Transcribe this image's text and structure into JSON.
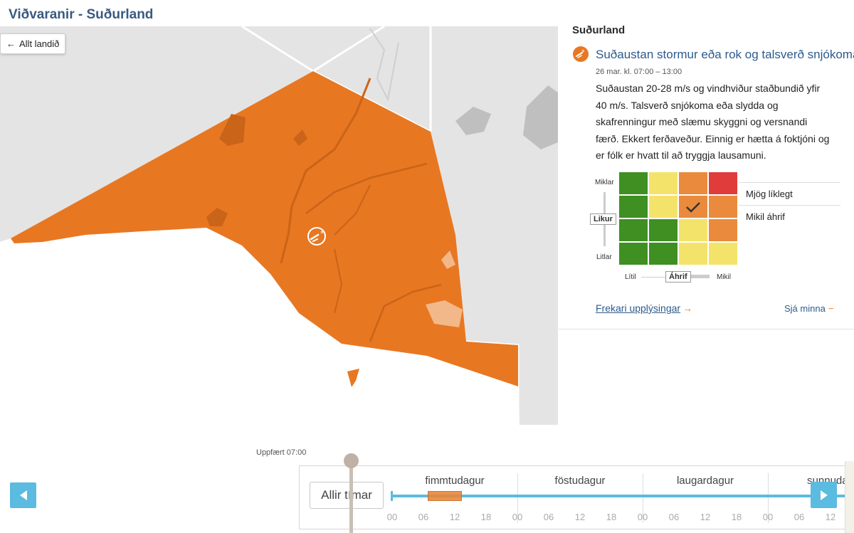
{
  "page": {
    "title": "Viðvaranir - Suðurland"
  },
  "map": {
    "back_label": "Allt landið",
    "colors": {
      "land": "#e4e4e4",
      "border": "#ffffff",
      "warning": "#e87722",
      "warning_dark": "#c96418",
      "warning_light": "#f2b88a"
    }
  },
  "panel": {
    "region": "Suðurland",
    "warning": {
      "title": "Suðaustan stormur eða rok og talsverð snjókoma (",
      "time": "26 mar. kl. 07:00 – 13:00",
      "description": "Suðaustan 20-28 m/s og vindhviður staðbundið yfir 40 m/s. Talsverð snjókoma eða slydda og skafrenningur með slæmu skyggni og versnandi færð. Ekkert ferðaveður. Einnig er hætta á foktjóni og er fólk er hvatt til að tryggja lausamuni.",
      "icon": "wind-snow-icon"
    },
    "matrix": {
      "rows": [
        [
          "green",
          "yellow",
          "orange",
          "red"
        ],
        [
          "green",
          "yellow",
          "orange-check",
          "orange"
        ],
        [
          "green",
          "green",
          "yellow",
          "orange"
        ],
        [
          "green",
          "green",
          "yellow",
          "yellow"
        ]
      ],
      "colors": {
        "green": "#3f8f22",
        "yellow": "#f4e36a",
        "orange": "#ea8a3c",
        "red": "#e03c3c"
      },
      "likelihood_label": "Likur",
      "likelihood_high": "Miklar",
      "likelihood_low": "Litlar",
      "impact_label": "Áhrif",
      "impact_low": "Lítil",
      "impact_high": "Mikil",
      "legend": [
        "Mjög líklegt",
        "Mikil áhrif"
      ]
    },
    "more_info": "Frekari upplýsingar",
    "see_less": "Sjá minna"
  },
  "timeline": {
    "updated": "Uppfært 07:00",
    "all_times": "Allir tímar",
    "days": [
      "fimmtudagur",
      "föstudagur",
      "laugardagur",
      "sunnudag"
    ],
    "hours": [
      "00",
      "06",
      "12",
      "18",
      "00",
      "06",
      "12",
      "18",
      "00",
      "06",
      "12",
      "18",
      "00",
      "06",
      "12"
    ],
    "accent": "#5bbbe0"
  }
}
